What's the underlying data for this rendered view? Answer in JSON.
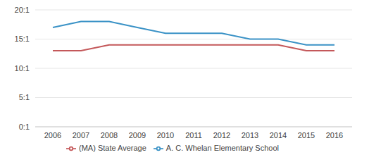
{
  "chart_data": {
    "type": "line",
    "categories": [
      "2006",
      "2007",
      "2008",
      "2009",
      "2010",
      "2011",
      "2012",
      "2013",
      "2014",
      "2015",
      "2016"
    ],
    "series": [
      {
        "name": "A. C. Whelan Elementary School",
        "color": "#3a92c6",
        "values": [
          17,
          18,
          18,
          17,
          16,
          16,
          16,
          15,
          15,
          14,
          14
        ]
      },
      {
        "name": "(MA) State Average",
        "color": "#c4585a",
        "values": [
          13,
          13,
          14,
          14,
          14,
          14,
          14,
          14,
          14,
          13,
          13
        ]
      }
    ],
    "ylim": [
      0,
      20
    ],
    "yticks": [
      {
        "value": 0,
        "label": "0:1"
      },
      {
        "value": 5,
        "label": "5:1"
      },
      {
        "value": 10,
        "label": "10:1"
      },
      {
        "value": 15,
        "label": "15:1"
      },
      {
        "value": 20,
        "label": "20:1"
      }
    ],
    "grid": true,
    "legend": "bottom"
  }
}
